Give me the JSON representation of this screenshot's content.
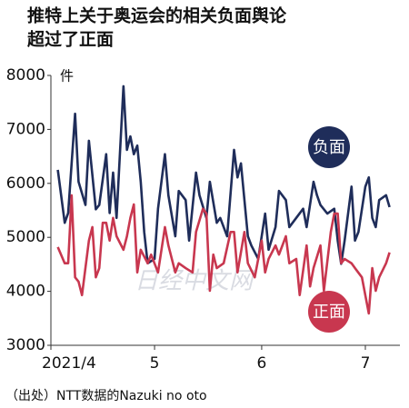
{
  "chart_data": {
    "type": "line",
    "title": [
      "推特上关于奥运会的相关负面舆论",
      "超过了正面"
    ],
    "y_unit": "件",
    "source": "（出处）NTT数据的Nazuki no oto",
    "watermark": "日经中文网",
    "xlim": [
      0,
      101
    ],
    "xticks": [
      {
        "value": 0,
        "label": "2021/4"
      },
      {
        "value": 30,
        "label": "5"
      },
      {
        "value": 61,
        "label": "6"
      },
      {
        "value": 91,
        "label": "7"
      }
    ],
    "ylim": [
      3000,
      8000
    ],
    "yticks": [
      3000,
      4000,
      5000,
      6000,
      7000,
      8000
    ],
    "grid": false,
    "series": [
      {
        "name": "负面",
        "color": "#1f2d5a",
        "x": [
          2,
          4,
          5,
          7,
          8,
          10,
          11,
          13,
          14,
          16,
          17,
          18,
          19,
          21,
          22,
          23,
          24,
          25,
          26,
          27,
          28,
          30,
          31,
          33,
          34,
          36,
          37,
          39,
          40,
          42,
          43,
          45,
          46,
          48,
          49,
          51,
          53,
          54,
          55,
          57,
          58,
          60,
          62,
          63,
          65,
          66,
          68,
          69,
          71,
          73,
          74,
          76,
          77,
          78,
          80,
          82,
          83,
          84,
          85,
          87,
          88,
          89,
          91,
          92,
          93,
          94,
          95,
          97,
          98
        ],
        "values": [
          6250,
          5270,
          5450,
          7290,
          6030,
          5600,
          6790,
          5520,
          5600,
          6540,
          5450,
          6200,
          5360,
          7800,
          6620,
          6870,
          6540,
          6700,
          6030,
          5100,
          4520,
          4600,
          5530,
          6540,
          5780,
          5020,
          5860,
          5690,
          4940,
          6200,
          5780,
          5360,
          6030,
          5270,
          5360,
          5020,
          6620,
          6110,
          6370,
          5020,
          4850,
          4600,
          5440,
          4770,
          5190,
          5860,
          5690,
          5190,
          5360,
          5530,
          5190,
          6030,
          5780,
          5600,
          5440,
          5530,
          4940,
          4510,
          4940,
          5940,
          4940,
          5100,
          5940,
          6110,
          5360,
          5190,
          5690,
          5780,
          5560
        ]
      },
      {
        "name": "正面",
        "color": "#c8374f",
        "x": [
          2,
          4,
          5,
          6,
          7,
          8,
          9,
          11,
          12,
          13,
          14,
          15,
          16,
          17,
          18,
          19,
          21,
          22,
          23,
          24,
          25,
          26,
          28,
          29,
          31,
          33,
          34,
          36,
          37,
          39,
          41,
          42,
          44,
          45,
          46,
          47,
          48,
          50,
          52,
          53,
          54,
          56,
          57,
          59,
          61,
          62,
          63,
          65,
          66,
          68,
          69,
          71,
          72,
          74,
          75,
          76,
          78,
          79,
          81,
          82,
          83,
          84,
          85,
          87,
          88,
          90,
          92,
          93,
          94,
          95,
          97,
          98
        ],
        "values": [
          4820,
          4520,
          4520,
          5780,
          4260,
          4180,
          3930,
          4940,
          5190,
          4260,
          4430,
          5270,
          5270,
          4940,
          5360,
          5020,
          4770,
          5020,
          5360,
          5610,
          4350,
          4770,
          4520,
          4680,
          4350,
          5190,
          4850,
          4350,
          4520,
          4430,
          4350,
          5100,
          5530,
          5440,
          4010,
          4680,
          4430,
          4520,
          5100,
          5100,
          4350,
          5100,
          4520,
          4260,
          4940,
          4350,
          4600,
          4850,
          4680,
          5020,
          4520,
          4600,
          3930,
          4850,
          4090,
          4430,
          4850,
          4010,
          5100,
          5440,
          5440,
          4520,
          4600,
          4520,
          4430,
          4260,
          3590,
          4430,
          4010,
          4260,
          4520,
          4720
        ]
      }
    ]
  }
}
